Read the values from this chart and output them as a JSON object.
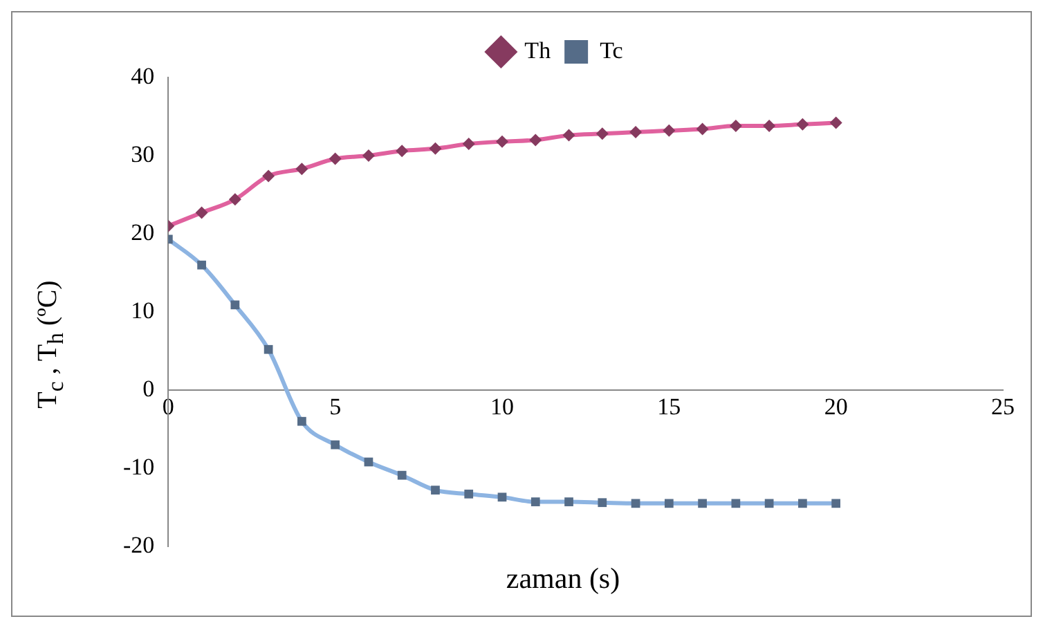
{
  "chart_data": {
    "type": "line",
    "xlabel": "zaman (s)",
    "ylabel": "T$_{c}$ , T$_{h}$ (ºC)",
    "x": [
      0,
      1,
      2,
      3,
      4,
      5,
      6,
      7,
      8,
      9,
      10,
      11,
      12,
      13,
      14,
      15,
      16,
      17,
      18,
      19,
      20
    ],
    "series": [
      {
        "name": "Th",
        "color": "#e0619e",
        "marker": "diamond",
        "values": [
          21,
          22.7,
          24.4,
          27.4,
          28.3,
          29.6,
          30,
          30.6,
          30.9,
          31.5,
          31.8,
          32,
          32.6,
          32.8,
          33,
          33.2,
          33.4,
          33.8,
          33.8,
          34,
          34.2
        ]
      },
      {
        "name": "Tc",
        "color": "#8db4e2",
        "marker": "square",
        "values": [
          19.3,
          16,
          10.9,
          5.2,
          -4,
          -7,
          -9.2,
          -10.9,
          -12.8,
          -13.3,
          -13.7,
          -14.3,
          -14.3,
          -14.4,
          -14.5,
          -14.5,
          -14.5,
          -14.5,
          -14.5,
          -14.5,
          -14.5
        ]
      }
    ],
    "xlim": [
      0,
      25
    ],
    "xticks": [
      0,
      5,
      10,
      15,
      20,
      25
    ],
    "ylim": [
      -20,
      40
    ],
    "yticks": [
      -20,
      -10,
      0,
      10,
      20,
      30,
      40
    ],
    "grid": false,
    "legend": "top"
  }
}
